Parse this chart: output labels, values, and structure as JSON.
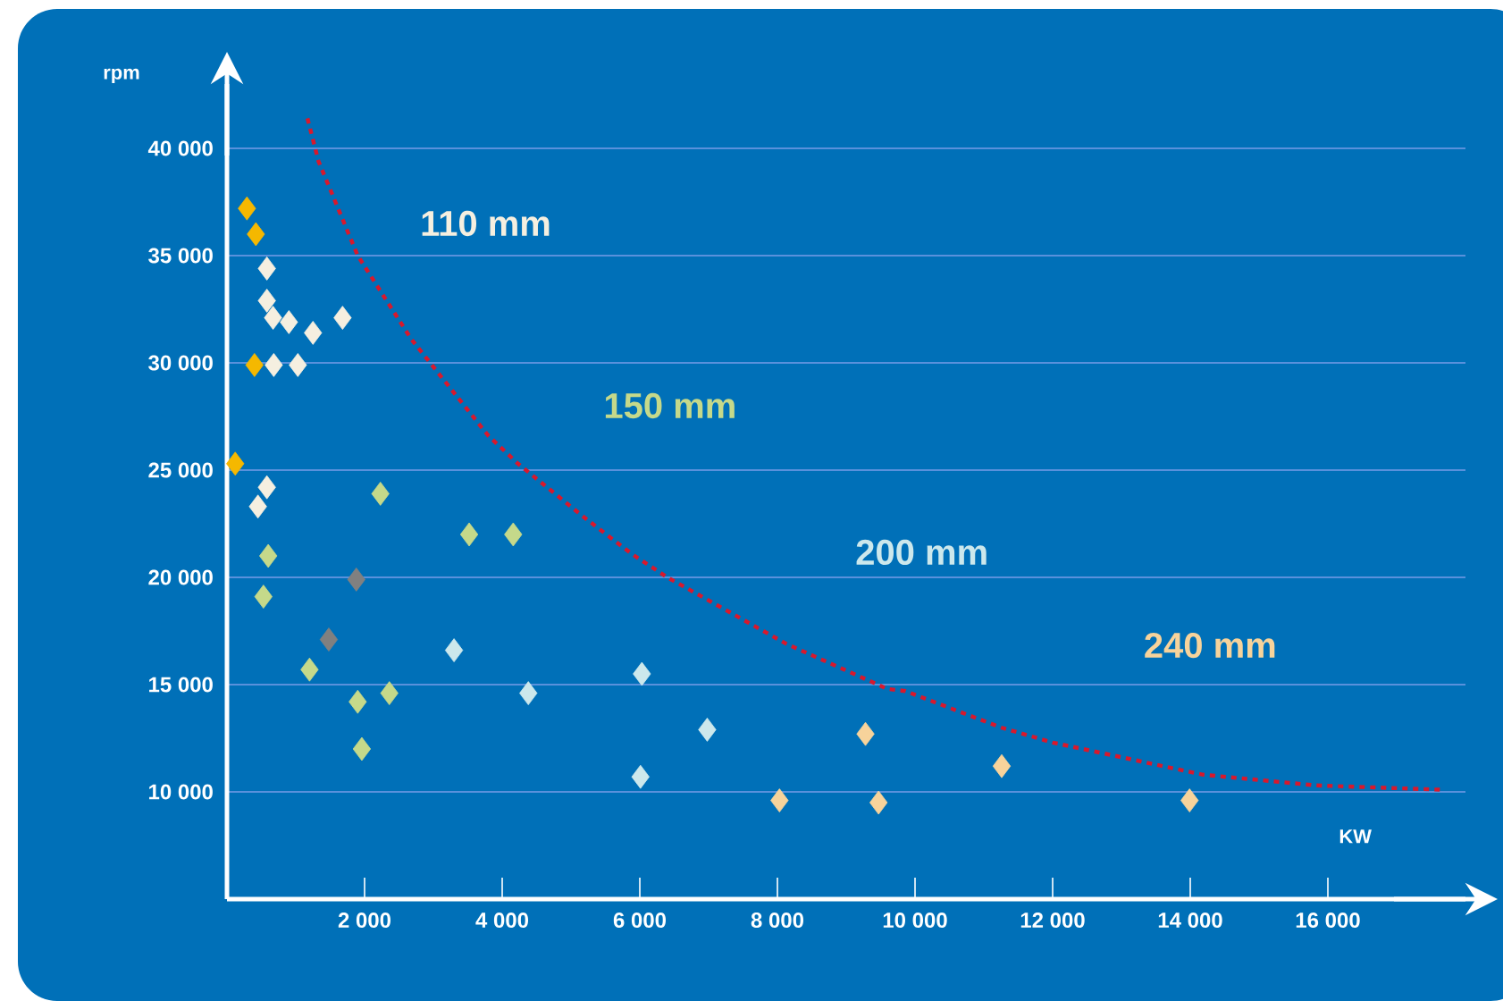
{
  "chart_data": {
    "type": "scatter",
    "xlabel": "KW",
    "ylabel": "rpm",
    "xlim": [
      0,
      18000
    ],
    "ylim": [
      5000,
      43000
    ],
    "xticks": [
      {
        "value": 2000,
        "label": "2 000"
      },
      {
        "value": 4000,
        "label": "4 000"
      },
      {
        "value": 6000,
        "label": "6 000"
      },
      {
        "value": 8000,
        "label": "8 000"
      },
      {
        "value": 10000,
        "label": "10 000"
      },
      {
        "value": 12000,
        "label": "12 000"
      },
      {
        "value": 14000,
        "label": "14 000"
      },
      {
        "value": 16000,
        "label": "16 000"
      }
    ],
    "yticks": [
      {
        "value": 10000,
        "label": "10 000"
      },
      {
        "value": 15000,
        "label": "15 000"
      },
      {
        "value": 20000,
        "label": "20 000"
      },
      {
        "value": 25000,
        "label": "25 000"
      },
      {
        "value": 30000,
        "label": "30 000"
      },
      {
        "value": 35000,
        "label": "35 000"
      },
      {
        "value": 40000,
        "label": "40 000"
      }
    ],
    "grid": "y",
    "marker": "diamond",
    "series": [
      {
        "color": "#f5b800",
        "x": [
          290,
          420,
          400,
          120
        ],
        "values": [
          37200,
          36000,
          29900,
          25300
        ]
      },
      {
        "name": "110 mm",
        "color": "#f5efe0",
        "x": [
          580,
          580,
          670,
          900,
          1250,
          1680,
          680,
          1030,
          580,
          450
        ],
        "values": [
          34400,
          32900,
          32100,
          31900,
          31400,
          32100,
          29900,
          29900,
          24200,
          23300
        ]
      },
      {
        "name": "150 mm",
        "color": "#c5d98a",
        "x": [
          2230,
          600,
          530,
          3520,
          4160,
          1200,
          1900,
          2360,
          1960
        ],
        "values": [
          23900,
          21000,
          19100,
          22000,
          22000,
          15700,
          14200,
          14600,
          12000
        ]
      },
      {
        "color": "#808080",
        "x": [
          1880,
          1480
        ],
        "values": [
          19900,
          17100
        ]
      },
      {
        "name": "200 mm",
        "color": "#cce8ec",
        "x": [
          3300,
          4380,
          6030,
          6980,
          6010
        ],
        "values": [
          16600,
          14600,
          15500,
          12900,
          10700
        ]
      },
      {
        "name": "240 mm",
        "color": "#f7d39b",
        "x": [
          9280,
          8030,
          9470,
          11260,
          13990
        ],
        "values": [
          12700,
          9600,
          9500,
          11200,
          9600
        ]
      },
      {
        "type": "line",
        "color": "#d7192d",
        "line_style": "dashed",
        "marker": "none",
        "x": [
          1170,
          1330,
          1900,
          2680,
          3450,
          3800,
          4230,
          5190,
          5880,
          6400,
          8130,
          9600,
          9860,
          11250,
          12000,
          14190,
          15830,
          17650
        ],
        "values": [
          41400,
          39400,
          35000,
          31100,
          28000,
          26600,
          25300,
          22800,
          21100,
          20000,
          16900,
          14800,
          14700,
          13000,
          12300,
          10800,
          10300,
          10100
        ]
      }
    ]
  }
}
